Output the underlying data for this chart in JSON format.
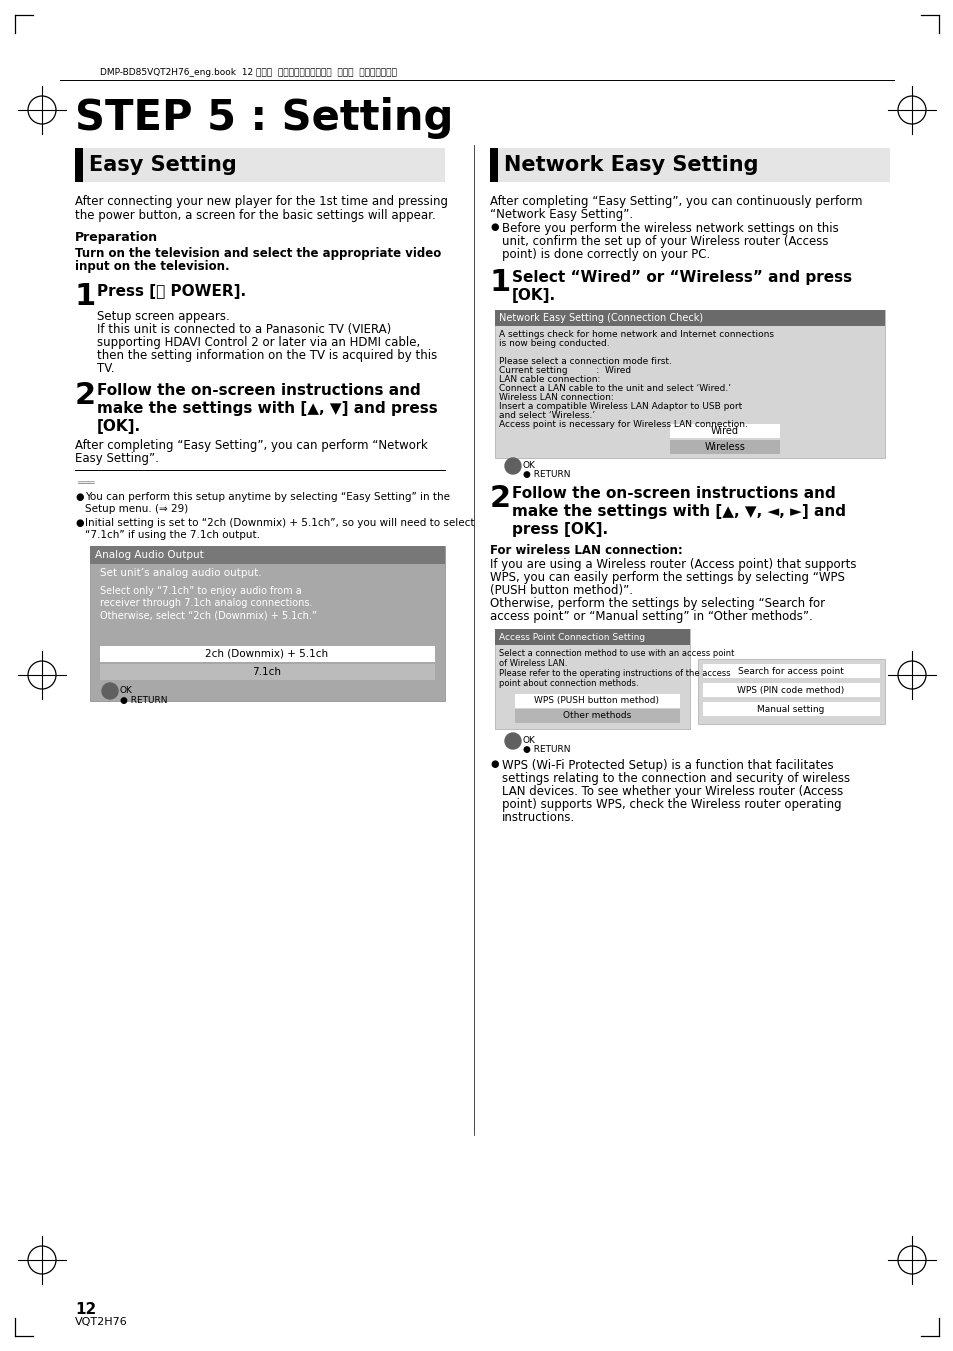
{
  "bg_color": "#ffffff",
  "page_num": "12",
  "page_sub": "VQT2H76",
  "header_text": "DMP-BD85VQT2H76_eng.book  12 ページ  ２００９年１２月３日  木曜日  午後４時５７分",
  "main_title": "STEP 5 : Setting",
  "left_section_title": "Easy Setting",
  "right_section_title": "Network Easy Setting",
  "left_intro1": "After connecting your new player for the 1st time and pressing",
  "left_intro2": "the power button, a screen for the basic settings will appear.",
  "prep_title": "Preparation",
  "prep_bold1": "Turn on the television and select the appropriate video",
  "prep_bold2": "input on the television.",
  "step1_title": "Press [⏻ POWER].",
  "step1_lines": [
    "Setup screen appears.",
    "If this unit is connected to a Panasonic TV (VIERA)",
    "supporting HDAVI Control 2 or later via an HDMI cable,",
    "then the setting information on the TV is acquired by this",
    "TV."
  ],
  "step2_lines": [
    "Follow the on-screen instructions and",
    "make the settings with [▲, ▼] and press",
    "[OK]."
  ],
  "step2_after1": "After completing “Easy Setting”, you can perform “Network",
  "step2_after2": "Easy Setting”.",
  "note_bullet1a": "You can perform this setup anytime by selecting “Easy Setting” in the",
  "note_bullet1b": "Setup menu. (⇒ 29)",
  "note_bullet2a": "Initial setting is set to “2ch (Downmix) + 5.1ch”, so you will need to select",
  "note_bullet2b": "“7.1ch” if using the 7.1ch output.",
  "screen1_title": "Analog Audio Output",
  "screen1_sub": "Set unit’s analog audio output.",
  "screen1_body1": "Select only “7.1ch” to enjoy audio from a",
  "screen1_body2": "receiver through 7.1ch analog connections.",
  "screen1_body3": "Otherwise, select “2ch (Downmix) + 5.1ch.”",
  "screen1_opt1": "2ch (Downmix) + 5.1ch",
  "screen1_opt2": "7.1ch",
  "right_intro1": "After completing “Easy Setting”, you can continuously perform",
  "right_intro2": "“Network Easy Setting”.",
  "right_bullet1": "Before you perform the wireless network settings on this",
  "right_bullet2": "unit, confirm the set up of your Wireless router (Access",
  "right_bullet3": "point) is done correctly on your PC.",
  "right_step1_line1": "Select “Wired” or “Wireless” and press",
  "right_step1_line2": "[OK].",
  "screen2_title": "Network Easy Setting (Connection Check)",
  "screen2_lines": [
    "A settings check for home network and Internet connections",
    "is now being conducted.",
    "",
    "Please select a connection mode first.",
    "Current setting          :  Wired",
    "LAN cable connection:",
    "Connect a LAN cable to the unit and select ‘Wired.’",
    "Wireless LAN connection:",
    "Insert a compatible Wireless LAN Adaptor to USB port",
    "and select ‘Wireless.’",
    "Access point is necessary for Wireless LAN connection."
  ],
  "screen2_opt1": "Wired",
  "screen2_opt2": "Wireless",
  "right_step2_lines": [
    "Follow the on-screen instructions and",
    "make the settings with [▲, ▼, ◄, ►] and",
    "press [OK]."
  ],
  "wireless_title": "For wireless LAN connection:",
  "wireless_lines": [
    "If you are using a Wireless router (Access point) that supports",
    "WPS, you can easily perform the settings by selecting “WPS",
    "(PUSH button method)”.",
    "Otherwise, perform the settings by selecting “Search for",
    "access point” or “Manual setting” in “Other methods”."
  ],
  "screen3_title": "Access Point Connection Setting",
  "screen3_body1": "Select a connection method to use with an access point",
  "screen3_body2": "of Wireless LAN.",
  "screen3_body3": "Please refer to the operating instructions of the access",
  "screen3_body4": "point about connection methods.",
  "screen3_opt1": "WPS (PUSH button method)",
  "screen3_opt2": "Other methods",
  "screen3_sub1": "Search for access point",
  "screen3_sub2": "WPS (PIN code method)",
  "screen3_sub3": "Manual setting",
  "wps_lines": [
    "WPS (Wi-Fi Protected Setup) is a function that facilitates",
    "settings relating to the connection and security of wireless",
    "LAN devices. To see whether your Wireless router (Access",
    "point) supports WPS, check the Wireless router operating",
    "instructions."
  ]
}
